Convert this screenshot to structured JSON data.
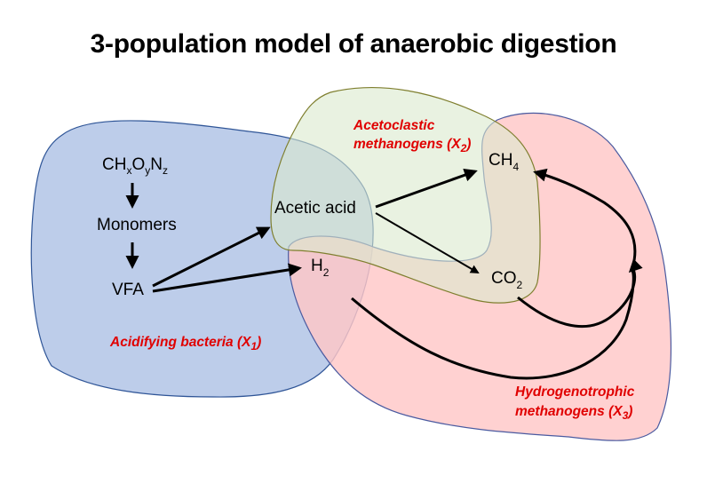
{
  "title": "3-population model of anaerobic digestion",
  "colors": {
    "acidifying_fill": "#b4c6e7",
    "acidifying_stroke": "#2f5597",
    "acetoclastic_fill": "#dbe9cd",
    "acetoclastic_stroke": "#7f7f2f",
    "hydrogenotrophic_fill": "#ffc7c7",
    "hydrogenotrophic_stroke": "#4a5aa0",
    "population_label": "#e00000",
    "arrow": "#000000"
  },
  "nodes": {
    "substrate": {
      "base": "CH",
      "s1": "x",
      "e1": "O",
      "s2": "y",
      "e2": "N",
      "s3": "z"
    },
    "monomers": "Monomers",
    "vfa": "VFA",
    "acetic_acid": "Acetic acid",
    "h2": {
      "base": "H",
      "sub": "2"
    },
    "ch4": {
      "base": "CH",
      "sub": "4"
    },
    "co2": {
      "base": "CO",
      "sub": "2"
    }
  },
  "populations": {
    "acidifying": {
      "name": "Acidifying bacteria (X",
      "sub": "1",
      "close": ")"
    },
    "acetoclastic": {
      "line1": "Acetoclastic",
      "line2": "methanogens (X",
      "sub": "2",
      "close": ")"
    },
    "hydrogenotrophic": {
      "line1": "Hydrogenotrophic",
      "line2": "methanogens (X",
      "sub": "3",
      "close": ")"
    }
  },
  "icons": [
    "reaction-arrow"
  ]
}
